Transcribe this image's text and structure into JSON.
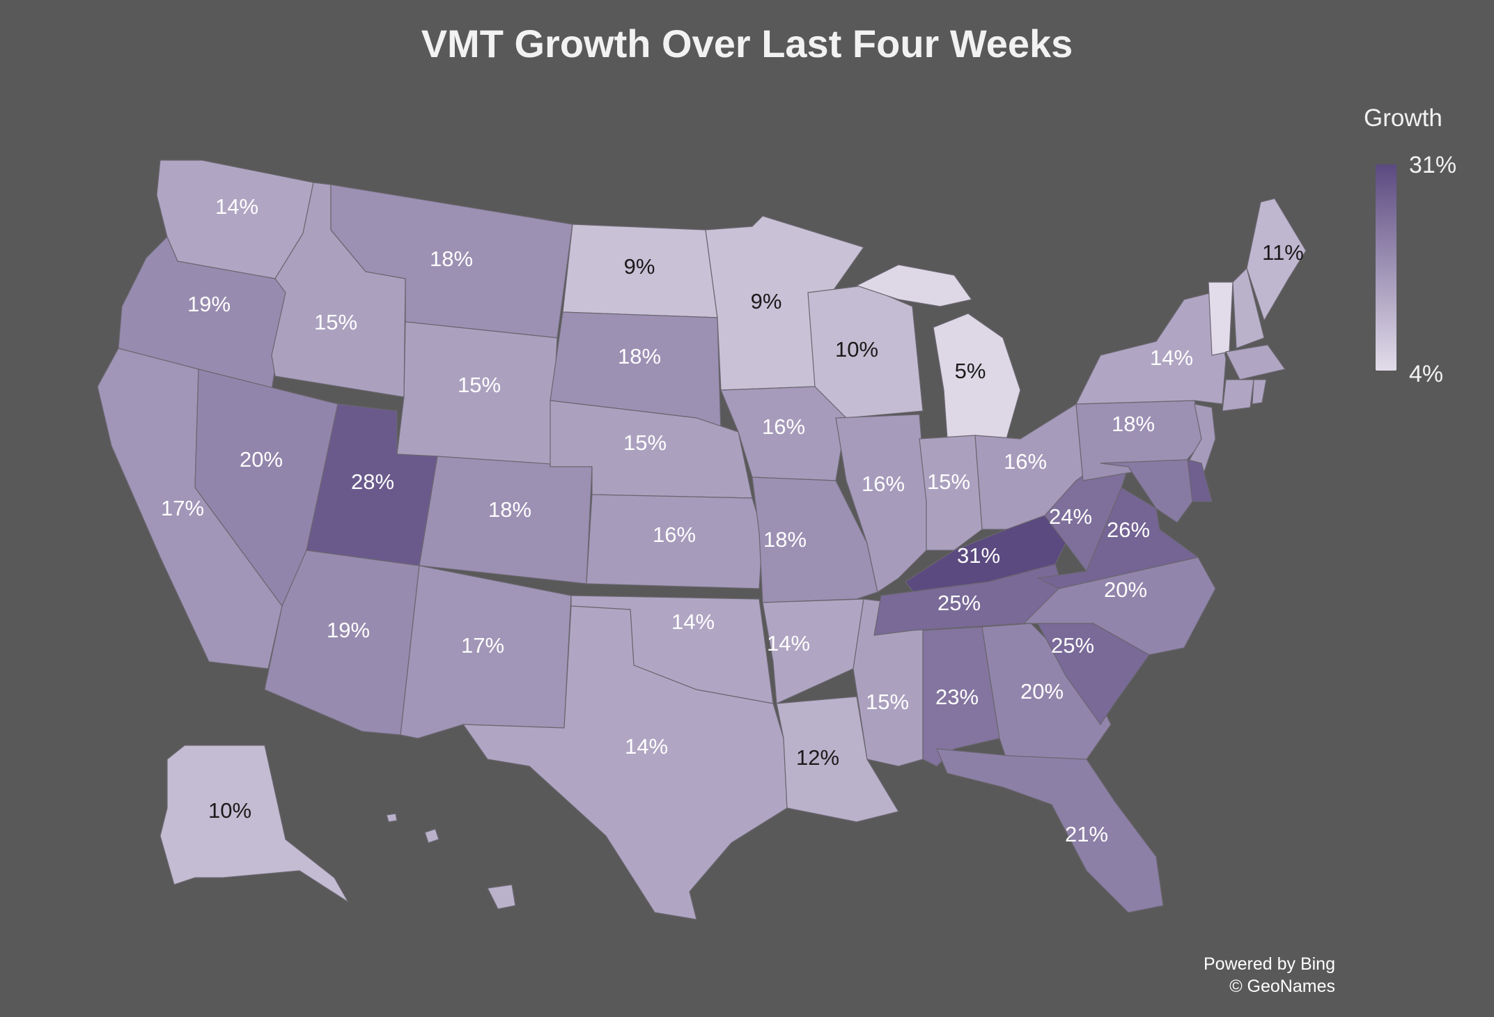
{
  "title": "VMT Growth Over Last Four Weeks",
  "legend": {
    "title": "Growth",
    "max_label": "31%",
    "min_label": "4%",
    "min": 4,
    "max": 31,
    "color_low": "#e2dcea",
    "color_high": "#5b4a80"
  },
  "credits": {
    "line1": "Powered by Bing",
    "line2": "© GeoNames"
  },
  "colors": {
    "background": "#595959",
    "label_light": "#ffffff",
    "label_dark": "#1a1a1a"
  },
  "states": [
    {
      "code": "WA",
      "value": 14,
      "label": "14%"
    },
    {
      "code": "OR",
      "value": 19,
      "label": "19%"
    },
    {
      "code": "CA",
      "value": 17,
      "label": "17%"
    },
    {
      "code": "ID",
      "value": 15,
      "label": "15%"
    },
    {
      "code": "NV",
      "value": 20,
      "label": "20%"
    },
    {
      "code": "MT",
      "value": 18,
      "label": "18%"
    },
    {
      "code": "WY",
      "value": 15,
      "label": "15%"
    },
    {
      "code": "UT",
      "value": 28,
      "label": "28%"
    },
    {
      "code": "AZ",
      "value": 19,
      "label": "19%"
    },
    {
      "code": "CO",
      "value": 18,
      "label": "18%"
    },
    {
      "code": "NM",
      "value": 17,
      "label": "17%"
    },
    {
      "code": "ND",
      "value": 9,
      "label": "9%"
    },
    {
      "code": "SD",
      "value": 18,
      "label": "18%"
    },
    {
      "code": "NE",
      "value": 15,
      "label": "15%"
    },
    {
      "code": "KS",
      "value": 16,
      "label": "16%"
    },
    {
      "code": "OK",
      "value": 14,
      "label": "14%"
    },
    {
      "code": "TX",
      "value": 14,
      "label": "14%"
    },
    {
      "code": "MN",
      "value": 9,
      "label": "9%"
    },
    {
      "code": "IA",
      "value": 16,
      "label": "16%"
    },
    {
      "code": "MO",
      "value": 18,
      "label": "18%"
    },
    {
      "code": "AR",
      "value": 14,
      "label": "14%"
    },
    {
      "code": "LA",
      "value": 12,
      "label": "12%"
    },
    {
      "code": "WI",
      "value": 10,
      "label": "10%"
    },
    {
      "code": "IL",
      "value": 16,
      "label": "16%"
    },
    {
      "code": "MS",
      "value": 15,
      "label": "15%"
    },
    {
      "code": "MI",
      "value": 5,
      "label": "5%"
    },
    {
      "code": "IN",
      "value": 15,
      "label": "15%"
    },
    {
      "code": "OH",
      "value": 16,
      "label": "16%"
    },
    {
      "code": "KY",
      "value": 31,
      "label": "31%"
    },
    {
      "code": "TN",
      "value": 25,
      "label": "25%"
    },
    {
      "code": "AL",
      "value": 23,
      "label": "23%"
    },
    {
      "code": "GA",
      "value": 20,
      "label": "20%"
    },
    {
      "code": "FL",
      "value": 21,
      "label": "21%"
    },
    {
      "code": "SC",
      "value": 25,
      "label": "25%"
    },
    {
      "code": "NC",
      "value": 20,
      "label": "20%"
    },
    {
      "code": "VA",
      "value": 26,
      "label": "26%"
    },
    {
      "code": "WV",
      "value": 24,
      "label": "24%"
    },
    {
      "code": "PA",
      "value": 18,
      "label": "18%"
    },
    {
      "code": "NY",
      "value": 14,
      "label": "14%"
    },
    {
      "code": "ME",
      "value": 11,
      "label": "11%"
    },
    {
      "code": "AK",
      "value": 10,
      "label": "10%"
    },
    {
      "code": "VT",
      "value": 4
    },
    {
      "code": "NH",
      "value": 12
    },
    {
      "code": "MA",
      "value": 14
    },
    {
      "code": "CT",
      "value": 14
    },
    {
      "code": "RI",
      "value": 14
    },
    {
      "code": "NJ",
      "value": 16
    },
    {
      "code": "DE",
      "value": 27
    },
    {
      "code": "MD",
      "value": 22
    },
    {
      "code": "HI",
      "value": 12
    }
  ]
}
